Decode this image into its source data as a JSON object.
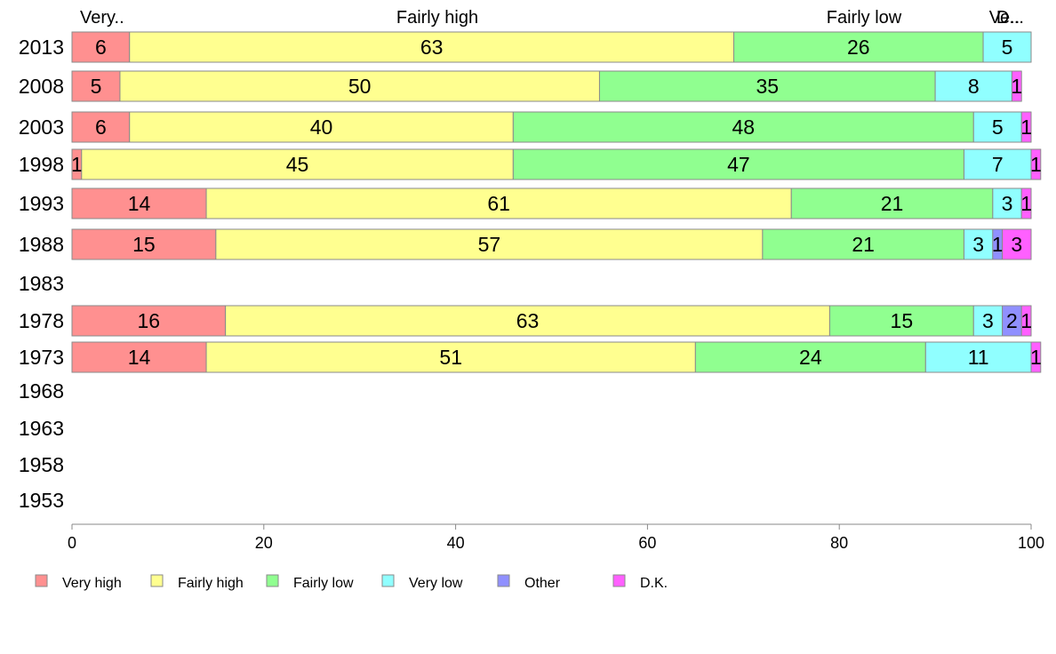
{
  "chart_data": {
    "type": "bar",
    "orientation": "horizontal",
    "stacked": true,
    "xlim": [
      0,
      100
    ],
    "x_ticks": [
      0,
      20,
      40,
      60,
      80,
      100
    ],
    "grid": false,
    "legend_position": "bottom",
    "categories": [
      "2013",
      "2008",
      "2003",
      "1998",
      "1993",
      "1988",
      "1983",
      "1978",
      "1973",
      "1968",
      "1963",
      "1958",
      "1953"
    ],
    "top_labels": [
      "Very..",
      "Fairly high",
      "Fairly low",
      "Ve..",
      "D..."
    ],
    "series": [
      {
        "name": "Very high",
        "color": "#ff9090",
        "values": [
          6,
          5,
          6,
          1,
          14,
          15,
          null,
          16,
          14,
          null,
          null,
          null,
          null
        ]
      },
      {
        "name": "Fairly high",
        "color": "#ffff90",
        "values": [
          63,
          50,
          40,
          45,
          61,
          57,
          null,
          63,
          51,
          null,
          null,
          null,
          null
        ]
      },
      {
        "name": "Fairly low",
        "color": "#90ff90",
        "values": [
          26,
          35,
          48,
          47,
          21,
          21,
          null,
          15,
          24,
          null,
          null,
          null,
          null
        ]
      },
      {
        "name": "Very low",
        "color": "#90ffff",
        "values": [
          5,
          8,
          5,
          7,
          3,
          3,
          null,
          3,
          11,
          null,
          null,
          null,
          null
        ]
      },
      {
        "name": "Other",
        "color": "#9090ff",
        "values": [
          0,
          0,
          0,
          0,
          0,
          1,
          null,
          2,
          0,
          null,
          null,
          null,
          null
        ]
      },
      {
        "name": "D.K.",
        "color": "#ff60ff",
        "values": [
          0,
          1,
          1,
          1,
          1,
          3,
          null,
          1,
          1,
          null,
          null,
          null,
          null
        ]
      }
    ]
  }
}
